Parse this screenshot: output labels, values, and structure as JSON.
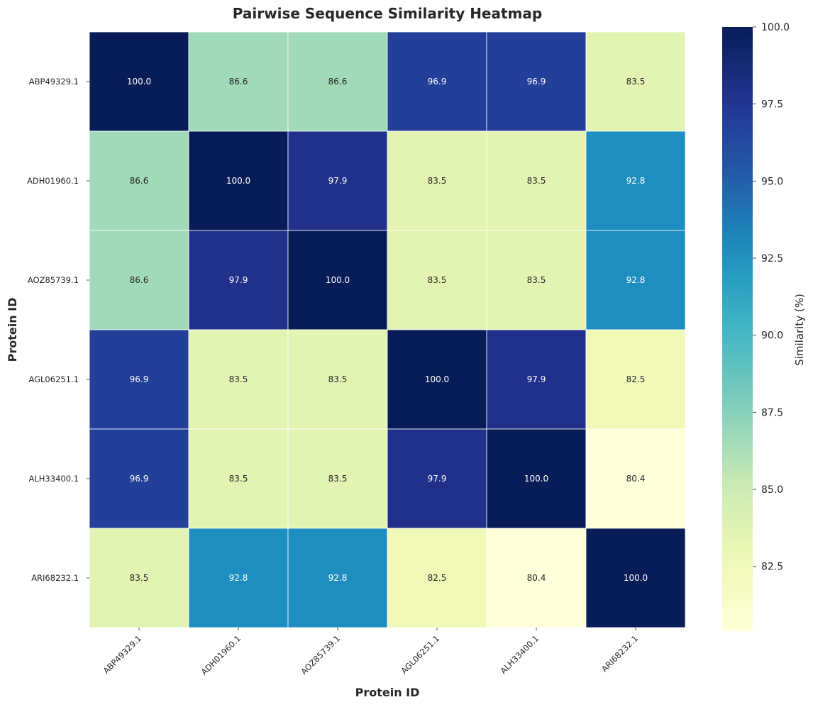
{
  "chart_data": {
    "type": "heatmap",
    "title": "Pairwise Sequence Similarity Heatmap",
    "xlabel": "Protein ID",
    "ylabel": "Protein ID",
    "x_categories": [
      "ABP49329.1",
      "ADH01960.1",
      "AOZ85739.1",
      "AGL06251.1",
      "ALH33400.1",
      "ARI68232.1"
    ],
    "y_categories": [
      "ABP49329.1",
      "ADH01960.1",
      "AOZ85739.1",
      "AGL06251.1",
      "ALH33400.1",
      "ARI68232.1"
    ],
    "values": [
      [
        100.0,
        86.6,
        86.6,
        96.9,
        96.9,
        83.5
      ],
      [
        86.6,
        100.0,
        97.9,
        83.5,
        83.5,
        92.8
      ],
      [
        86.6,
        97.9,
        100.0,
        83.5,
        83.5,
        92.8
      ],
      [
        96.9,
        83.5,
        83.5,
        100.0,
        97.9,
        82.5
      ],
      [
        96.9,
        83.5,
        83.5,
        97.9,
        100.0,
        80.4
      ],
      [
        83.5,
        92.8,
        92.8,
        82.5,
        80.4,
        100.0
      ]
    ],
    "value_format": "0.0",
    "colormap": "YlGnBu",
    "colorbar": {
      "label": "Similarity (%)",
      "range": [
        80.4,
        100.0
      ],
      "ticks": [
        82.5,
        85.0,
        87.5,
        90.0,
        92.5,
        95.0,
        97.5,
        100.0
      ]
    },
    "grid": false,
    "cell_gridline_color": "#ffffff"
  }
}
